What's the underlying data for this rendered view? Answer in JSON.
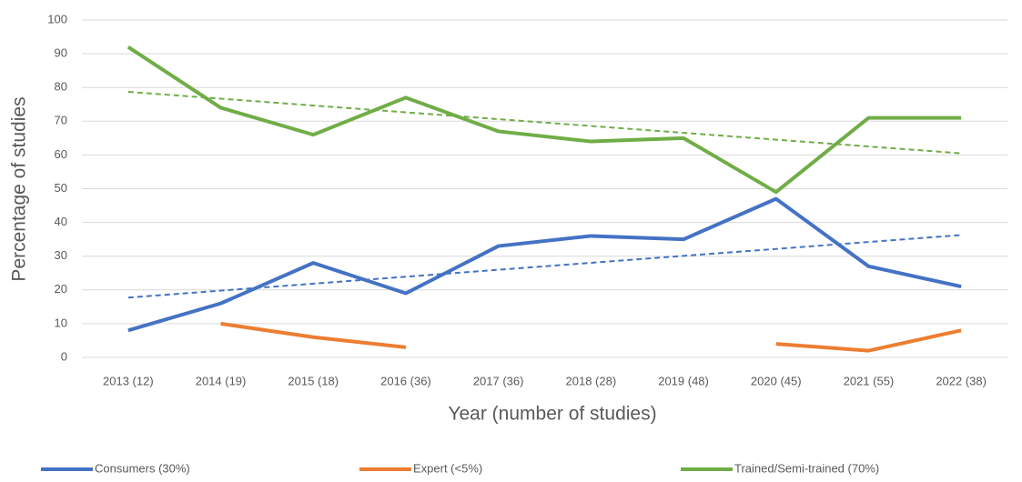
{
  "chart_data": {
    "type": "line",
    "x_label": "Year (number of studies)",
    "y_label": "Percentage of studies",
    "categories": [
      "2013 (12)",
      "2014 (19)",
      "2015 (18)",
      "2016 (36)",
      "2017 (36)",
      "2018 (28)",
      "2019 (48)",
      "2020 (45)",
      "2021 (55)",
      "2022 (38)"
    ],
    "series": [
      {
        "name": "Consumers (30%)",
        "color": "#4472c4",
        "trendline": true,
        "values": [
          8,
          16,
          28,
          19,
          33,
          36,
          35,
          47,
          27,
          21
        ]
      },
      {
        "name": "Expert (<5%)",
        "color": "#ed7d31",
        "trendline": false,
        "values": [
          null,
          10,
          6,
          3,
          null,
          null,
          null,
          4,
          2,
          8
        ]
      },
      {
        "name": "Trained/Semi-trained (70%)",
        "color": "#70ad47",
        "trendline": true,
        "values": [
          92,
          74,
          66,
          77,
          67,
          64,
          65,
          49,
          71,
          71
        ]
      }
    ],
    "ylim": [
      0,
      100
    ],
    "yticks": [
      0,
      10,
      20,
      30,
      40,
      50,
      60,
      70,
      80,
      90,
      100
    ],
    "grid": true,
    "legend": "bottom"
  }
}
